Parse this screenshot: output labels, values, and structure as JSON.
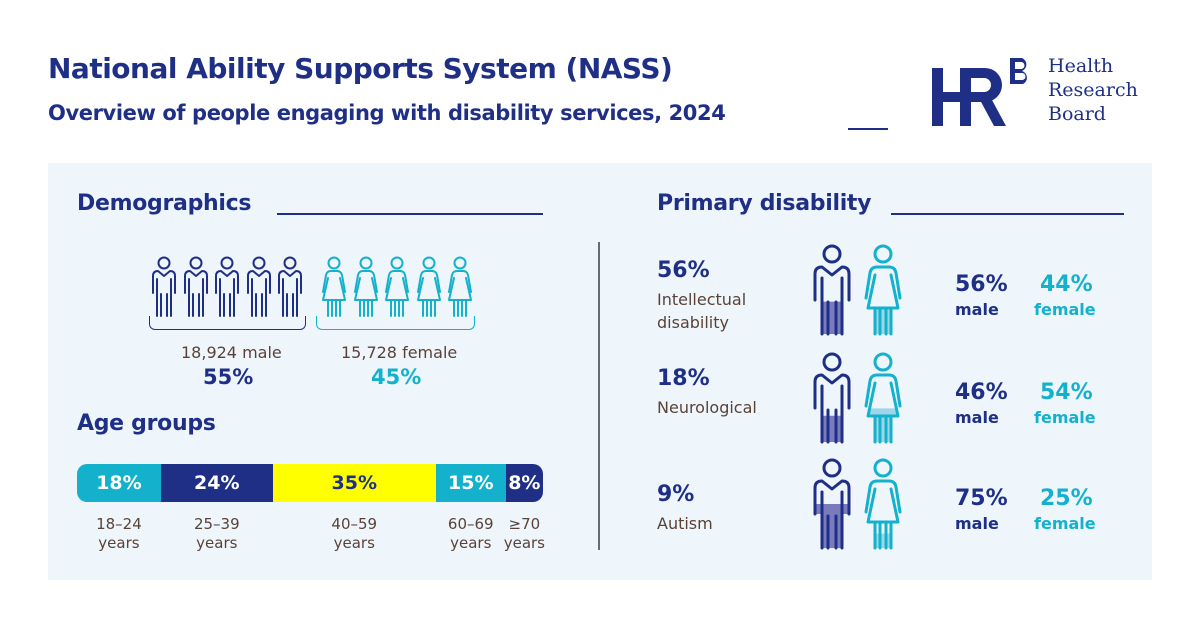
{
  "header": {
    "title": "National Ability Supports System (NASS)",
    "subtitle": "Overview of people engaging with disability services, 2024"
  },
  "logo": {
    "mark": "HRB",
    "line1": "Health",
    "line2": "Research",
    "line3": "Board"
  },
  "colors": {
    "navy": "#1f2f86",
    "teal": "#14b1cc",
    "yellow": "#ffff00",
    "brown": "#5a4236",
    "panel": "#eef6fc",
    "male_fill": "#7a7bbd",
    "female_fill": "#9dd6e8"
  },
  "demographics": {
    "heading": "Demographics",
    "male": {
      "count_label": "18,924 male",
      "pct": "55%",
      "icons": 5
    },
    "female": {
      "count_label": "15,728 female",
      "pct": "45%",
      "icons": 5
    }
  },
  "age_groups": {
    "heading": "Age groups",
    "segments": [
      {
        "pct_label": "18%",
        "value": 18,
        "line1": "18–24",
        "line2": "years",
        "bg": "#14b1cc",
        "fg": "#ffffff"
      },
      {
        "pct_label": "24%",
        "value": 24,
        "line1": "25–39",
        "line2": "years",
        "bg": "#1f2f86",
        "fg": "#ffffff"
      },
      {
        "pct_label": "35%",
        "value": 35,
        "line1": "40–59",
        "line2": "years",
        "bg": "#ffff00",
        "fg": "#1f2f86"
      },
      {
        "pct_label": "15%",
        "value": 15,
        "line1": "60–69",
        "line2": "years",
        "bg": "#14b1cc",
        "fg": "#ffffff"
      },
      {
        "pct_label": "8%",
        "value": 8,
        "line1": "≥70",
        "line2": "years",
        "bg": "#1f2f86",
        "fg": "#ffffff"
      }
    ]
  },
  "primary_disability": {
    "heading": "Primary disability",
    "rows": [
      {
        "pct": "56%",
        "name_line1": "Intellectual",
        "name_line2": "disability",
        "male_pct": "56%",
        "male_value": 56,
        "male_label": "male",
        "female_pct": "44%",
        "female_value": 44,
        "female_label": "female"
      },
      {
        "pct": "18%",
        "name_line1": "Neurological",
        "name_line2": "",
        "male_pct": "46%",
        "male_value": 46,
        "male_label": "male",
        "female_pct": "54%",
        "female_value": 54,
        "female_label": "female"
      },
      {
        "pct": "9%",
        "name_line1": "Autism",
        "name_line2": "",
        "male_pct": "75%",
        "male_value": 75,
        "male_label": "male",
        "female_pct": "25%",
        "female_value": 25,
        "female_label": "female"
      }
    ]
  }
}
